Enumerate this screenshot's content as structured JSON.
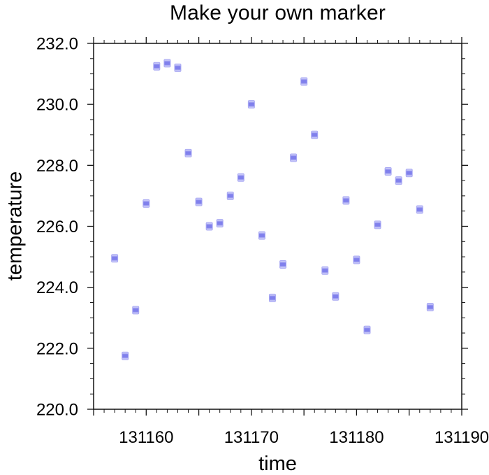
{
  "title": "Make your own marker",
  "chart_data": {
    "type": "scatter",
    "title": "Make your own marker",
    "xlabel": "time",
    "ylabel": "temperature",
    "xlim": [
      131155,
      131190
    ],
    "ylim": [
      220.0,
      232.0
    ],
    "grid": false,
    "legend": "none",
    "x_major_tick_spacing": 5,
    "x_minor_tick_spacing": 1,
    "y_major_tick_spacing": 2,
    "y_minor_tick_spacing": 0.5,
    "x_tick_label_values": [
      131160,
      131170,
      131180,
      131190
    ],
    "x_tick_labels": [
      "131160",
      "131170",
      "131180",
      "131190"
    ],
    "y_tick_label_values": [
      220,
      222,
      224,
      226,
      228,
      230,
      232
    ],
    "y_tick_labels": [
      "220.0",
      "222.0",
      "224.0",
      "226.0",
      "228.0",
      "230.0",
      "232.0"
    ],
    "marker_shape": "custom-square",
    "marker_color": "#8080ec",
    "marker_band_color": "#c6c6f8",
    "marker_outline_color": "#aaaaf3",
    "axis_color": "#111111",
    "x": [
      131157,
      131158,
      131159,
      131160,
      131161,
      131162,
      131163,
      131164,
      131165,
      131166,
      131167,
      131168,
      131169,
      131170,
      131171,
      131172,
      131173,
      131174,
      131175,
      131176,
      131177,
      131178,
      131179,
      131180,
      131181,
      131182,
      131183,
      131184,
      131185,
      131186,
      131187
    ],
    "y": [
      224.95,
      221.75,
      223.25,
      226.75,
      231.25,
      231.35,
      231.2,
      228.4,
      226.8,
      226.0,
      226.1,
      227.0,
      227.6,
      230.0,
      225.7,
      223.65,
      224.75,
      228.25,
      230.75,
      229.0,
      224.55,
      223.7,
      226.85,
      224.9,
      222.6,
      226.05,
      227.8,
      227.5,
      227.75,
      226.55,
      223.35
    ]
  }
}
